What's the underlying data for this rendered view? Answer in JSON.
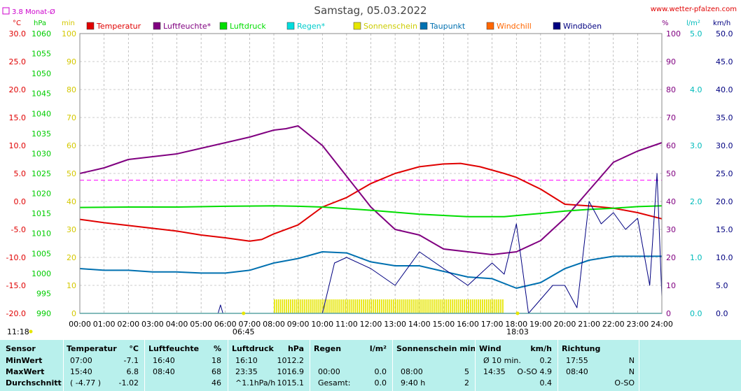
{
  "header": {
    "title": "Samstag, 05.03.2022",
    "site": "www.wetter-pfalzen.com",
    "month_avg": "3.8 Monat-Ø"
  },
  "axes": {
    "temp_unit": "°C",
    "pressure_unit": "hPa",
    "min_unit": "min",
    "pct_unit": "%",
    "rain_unit": "l/m²",
    "wind_unit": "km/h",
    "temp_ticks": [
      "30.0",
      "25.0",
      "20.0",
      "15.0",
      "10.0",
      "5.0",
      "0.0",
      "-5.0",
      "-10.0",
      "-15.0",
      "-20.0"
    ],
    "pressure_ticks": [
      "1060",
      "1055",
      "1050",
      "1045",
      "1040",
      "1035",
      "1030",
      "1025",
      "1020",
      "1015",
      "1010",
      "1005",
      "1000",
      "995",
      "990"
    ],
    "min_ticks": [
      "100",
      "90",
      "80",
      "70",
      "60",
      "50",
      "40",
      "30",
      "20",
      "10",
      "0"
    ],
    "pct_ticks": [
      "100",
      "90",
      "80",
      "70",
      "60",
      "50",
      "40",
      "30",
      "20",
      "10",
      "0"
    ],
    "rain_ticks": [
      "5.0",
      "4.0",
      "3.0",
      "2.0",
      "1.0",
      "0.0"
    ],
    "wind_ticks": [
      "50.0",
      "45.0",
      "40.0",
      "35.0",
      "30.0",
      "25.0",
      "20.0",
      "15.0",
      "10.0",
      "5.0",
      "0.0"
    ],
    "time_ticks": [
      "00:00",
      "01:00",
      "02:00",
      "03:00",
      "04:00",
      "05:00",
      "06:00",
      "07:00",
      "08:00",
      "09:00",
      "10:00",
      "11:00",
      "12:00",
      "13:00",
      "14:00",
      "15:00",
      "16:00",
      "17:00",
      "18:00",
      "19:00",
      "20:00",
      "21:00",
      "22:00",
      "23:00",
      "24:00"
    ],
    "sunrise": "06:45",
    "sunset": "18:03",
    "updated": "11:18"
  },
  "chart_data": {
    "type": "line",
    "title": "Samstag, 05.03.2022",
    "x_unit": "hours",
    "legend": [
      "Temperatur",
      "Luftfeuchte*",
      "Luftdruck",
      "Regen*",
      "Sonnenschein",
      "Taupunkt",
      "Windchill",
      "Windböen"
    ],
    "colors": {
      "temp": "#e00000",
      "hum": "#800080",
      "press": "#00dd00",
      "rain": "#00dddd",
      "sun": "#e6e600",
      "dew": "#0070b0",
      "chill": "#ff6600",
      "gust": "#000080",
      "avg": "#ff00ff"
    },
    "month_avg_temp": 3.8,
    "series": [
      {
        "name": "Temperatur",
        "unit": "°C",
        "points": [
          [
            0,
            -3.2
          ],
          [
            1,
            -3.8
          ],
          [
            2,
            -4.3
          ],
          [
            3,
            -4.8
          ],
          [
            4,
            -5.3
          ],
          [
            5,
            -6.0
          ],
          [
            6,
            -6.5
          ],
          [
            7,
            -7.1
          ],
          [
            7.5,
            -6.8
          ],
          [
            8,
            -5.8
          ],
          [
            9,
            -4.2
          ],
          [
            10,
            -1.0
          ],
          [
            11,
            0.7
          ],
          [
            12,
            3.2
          ],
          [
            13,
            5.0
          ],
          [
            14,
            6.2
          ],
          [
            15,
            6.7
          ],
          [
            15.7,
            6.8
          ],
          [
            16.5,
            6.2
          ],
          [
            17.5,
            5.0
          ],
          [
            18,
            4.3
          ],
          [
            19,
            2.2
          ],
          [
            20,
            -0.5
          ],
          [
            21,
            -0.8
          ],
          [
            22,
            -1.2
          ],
          [
            23,
            -2.0
          ],
          [
            24,
            -3.1
          ]
        ]
      },
      {
        "name": "Luftfeuchte*",
        "unit": "%",
        "points": [
          [
            0,
            50
          ],
          [
            1,
            52
          ],
          [
            2,
            55
          ],
          [
            3,
            56
          ],
          [
            4,
            57
          ],
          [
            5,
            59
          ],
          [
            6,
            61
          ],
          [
            7,
            63
          ],
          [
            8,
            65.5
          ],
          [
            8.5,
            66
          ],
          [
            9,
            67
          ],
          [
            10,
            60
          ],
          [
            11,
            49
          ],
          [
            12,
            38
          ],
          [
            13,
            30
          ],
          [
            14,
            28
          ],
          [
            15,
            23
          ],
          [
            16,
            22
          ],
          [
            17,
            21
          ],
          [
            18,
            22
          ],
          [
            19,
            26
          ],
          [
            20,
            34
          ],
          [
            21,
            44
          ],
          [
            22,
            54
          ],
          [
            23,
            58
          ],
          [
            24,
            61
          ]
        ]
      },
      {
        "name": "Luftdruck",
        "unit": "hPa",
        "points": [
          [
            0,
            1016.5
          ],
          [
            2,
            1016.6
          ],
          [
            4,
            1016.6
          ],
          [
            6,
            1016.8
          ],
          [
            8,
            1016.9
          ],
          [
            9,
            1016.8
          ],
          [
            10,
            1016.6
          ],
          [
            12,
            1015.8
          ],
          [
            14,
            1014.8
          ],
          [
            16,
            1014.2
          ],
          [
            17.5,
            1014.2
          ],
          [
            19,
            1015.0
          ],
          [
            20,
            1015.6
          ],
          [
            21,
            1016.0
          ],
          [
            22,
            1016.3
          ],
          [
            23,
            1016.7
          ],
          [
            24,
            1016.9
          ]
        ]
      },
      {
        "name": "Taupunkt",
        "unit": "°C",
        "points": [
          [
            0,
            -12.0
          ],
          [
            1,
            -12.3
          ],
          [
            2,
            -12.3
          ],
          [
            3,
            -12.6
          ],
          [
            4,
            -12.6
          ],
          [
            5,
            -12.8
          ],
          [
            6,
            -12.8
          ],
          [
            7,
            -12.3
          ],
          [
            8,
            -11.0
          ],
          [
            9,
            -10.2
          ],
          [
            10,
            -9.0
          ],
          [
            11,
            -9.2
          ],
          [
            12,
            -10.8
          ],
          [
            13,
            -11.5
          ],
          [
            14,
            -11.5
          ],
          [
            15,
            -12.5
          ],
          [
            16,
            -13.5
          ],
          [
            17,
            -13.8
          ],
          [
            18,
            -15.5
          ],
          [
            19,
            -14.5
          ],
          [
            20,
            -12.0
          ],
          [
            21,
            -10.5
          ],
          [
            22,
            -9.8
          ],
          [
            23,
            -9.8
          ],
          [
            24,
            -9.8
          ]
        ]
      },
      {
        "name": "Windböen",
        "unit": "km/h",
        "points": [
          [
            5.7,
            0
          ],
          [
            5.8,
            1.5
          ],
          [
            5.9,
            0
          ],
          [
            10,
            0
          ],
          [
            10.5,
            9
          ],
          [
            11,
            10
          ],
          [
            12,
            8
          ],
          [
            13,
            5
          ],
          [
            14,
            11
          ],
          [
            15,
            8
          ],
          [
            16,
            5
          ],
          [
            17,
            9
          ],
          [
            17.5,
            7
          ],
          [
            18,
            16
          ],
          [
            18.5,
            0
          ],
          [
            19.5,
            5
          ],
          [
            20,
            5
          ],
          [
            20.5,
            1
          ],
          [
            21,
            20
          ],
          [
            21.5,
            16
          ],
          [
            22,
            18
          ],
          [
            22.5,
            15
          ],
          [
            23,
            17
          ],
          [
            23.5,
            5
          ],
          [
            23.8,
            25
          ],
          [
            24,
            3
          ]
        ]
      },
      {
        "name": "Sonnenschein",
        "unit": "min",
        "intervals": [
          [
            8.0,
            17.5
          ]
        ],
        "level": 5
      },
      {
        "name": "Regen*",
        "unit": "l/m²",
        "points": [
          [
            0,
            0
          ],
          [
            24,
            0
          ]
        ]
      }
    ]
  },
  "stats": {
    "headers": {
      "sensor": "Sensor",
      "temp": "Temperatur",
      "temp_unit": "°C",
      "hum": "Luftfeuchte",
      "hum_unit": "%",
      "press": "Luftdruck",
      "press_unit": "hPa",
      "rain": "Regen",
      "rain_unit": "l/m²",
      "sun": "Sonnenschein min",
      "wind": "Wind",
      "wind_unit": "km/h",
      "dir": "Richtung"
    },
    "rows": [
      {
        "label": "MinWert",
        "temp_time": "07:00",
        "temp": "-7.1",
        "hum_time": "16:40",
        "hum": "18",
        "press_time": "16:10",
        "press": "1012.2",
        "rain_time": "",
        "rain": "",
        "sun_time": "",
        "sun": "",
        "wind_time": "Ø 10 min.",
        "wind": "0.2",
        "dir_time": "17:55",
        "dir": "N"
      },
      {
        "label": "MaxWert",
        "temp_time": "15:40",
        "temp": "6.8",
        "hum_time": "08:40",
        "hum": "68",
        "press_time": "23:35",
        "press": "1016.9",
        "rain_time": "00:00",
        "rain": "0.0",
        "sun_time": "08:00",
        "sun": "5",
        "wind_time": "14:35",
        "wind": "O-SO 4.9",
        "dir_time": "08:40",
        "dir": "N"
      },
      {
        "label": "Durchschnitt",
        "temp_time": "( -4.77 )",
        "temp": "-1.02",
        "hum_time": "",
        "hum": "46",
        "press_time": "^1.1hPa/h",
        "press": "1015.1",
        "rain_time": "Gesamt:",
        "rain": "0.0",
        "sun_time": "9:40 h",
        "sun": "2",
        "wind_time": "",
        "wind": "0.4",
        "dir_time": "",
        "dir": "O-SO"
      }
    ]
  }
}
